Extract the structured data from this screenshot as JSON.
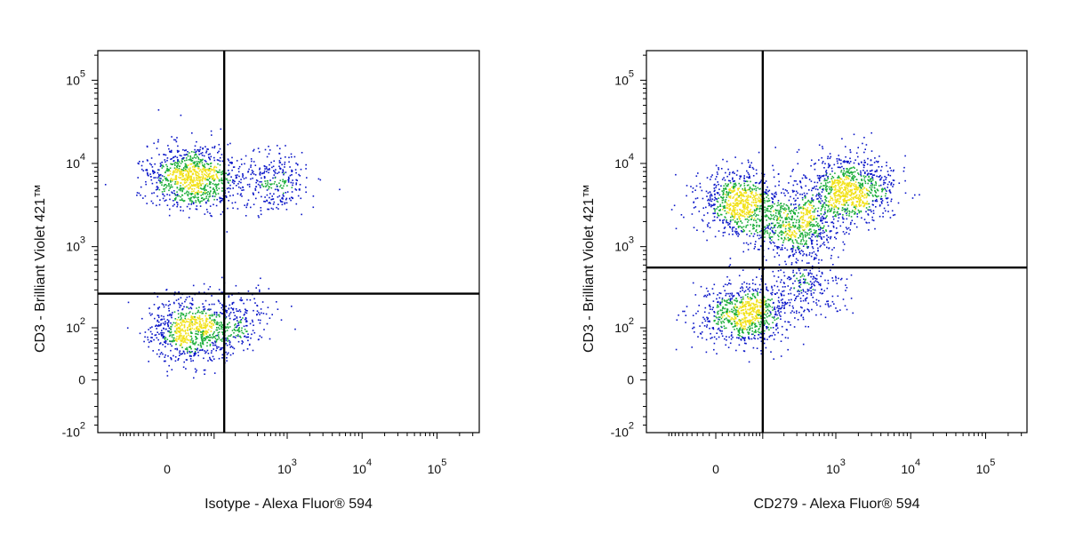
{
  "chart_data": [
    {
      "type": "scatter",
      "xlabel": "Isotype - Alexa Fluor® 594",
      "ylabel": "CD3 - Brilliant Violet 421™",
      "x_scale": "biexponential",
      "y_scale": "biexponential",
      "x_ticks": [
        {
          "value": 0,
          "base": "0",
          "exp": ""
        },
        {
          "value": 1000,
          "base": "10",
          "exp": "3"
        },
        {
          "value": 10000,
          "base": "10",
          "exp": "4"
        },
        {
          "value": 100000,
          "base": "10",
          "exp": "5"
        }
      ],
      "y_ticks": [
        {
          "value": 100000,
          "base": "10",
          "exp": "5"
        },
        {
          "value": 10000,
          "base": "10",
          "exp": "4"
        },
        {
          "value": 1000,
          "base": "10",
          "exp": "3"
        },
        {
          "value": 100,
          "base": "10",
          "exp": "2"
        },
        {
          "value": 0,
          "base": "0",
          "exp": ""
        },
        {
          "value": -100,
          "base": "-10",
          "exp": "2"
        }
      ],
      "quadrant_gate": {
        "x": 140,
        "y": 270
      },
      "populations": [
        {
          "x_center": 40,
          "y_center": 7000,
          "count": 950
        },
        {
          "x_center": 600,
          "y_center": 6000,
          "count": 320
        },
        {
          "x_center": 40,
          "y_center": 90,
          "count": 780
        },
        {
          "x_center": 200,
          "y_center": 130,
          "count": 220
        }
      ],
      "colors": {
        "low": "#0a16c8",
        "mid": "#1cae3a",
        "high": "#f2e21a"
      }
    },
    {
      "type": "scatter",
      "xlabel": "CD279 - Alexa Fluor® 594",
      "ylabel": "CD3 - Brilliant Violet 421™",
      "x_scale": "biexponential",
      "y_scale": "biexponential",
      "x_ticks": [
        {
          "value": 0,
          "base": "0",
          "exp": ""
        },
        {
          "value": 1000,
          "base": "10",
          "exp": "3"
        },
        {
          "value": 10000,
          "base": "10",
          "exp": "4"
        },
        {
          "value": 100000,
          "base": "10",
          "exp": "5"
        }
      ],
      "y_ticks": [
        {
          "value": 100000,
          "base": "10",
          "exp": "5"
        },
        {
          "value": 10000,
          "base": "10",
          "exp": "4"
        },
        {
          "value": 1000,
          "base": "10",
          "exp": "3"
        },
        {
          "value": 100,
          "base": "10",
          "exp": "2"
        },
        {
          "value": 0,
          "base": "0",
          "exp": ""
        },
        {
          "value": -100,
          "base": "-10",
          "exp": "2"
        }
      ],
      "quadrant_gate": {
        "x": 100,
        "y": 560
      },
      "populations": [
        {
          "x_center": 40,
          "y_center": 3500,
          "count": 800
        },
        {
          "x_center": 1500,
          "y_center": 5000,
          "count": 950
        },
        {
          "x_center": 300,
          "y_center": 1800,
          "count": 650
        },
        {
          "x_center": 50,
          "y_center": 150,
          "count": 850
        },
        {
          "x_center": 400,
          "y_center": 350,
          "count": 250
        }
      ],
      "colors": {
        "low": "#0a16c8",
        "mid": "#1cae3a",
        "high": "#f2e21a"
      }
    }
  ]
}
